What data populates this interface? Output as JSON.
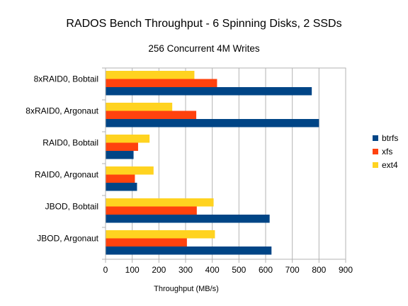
{
  "chart_data": {
    "type": "bar",
    "orientation": "horizontal",
    "title": "RADOS Bench Throughput - 6 Spinning Disks, 2 SSDs",
    "subtitle": "256 Concurrent 4M Writes",
    "xlabel": "Throughput (MB/s)",
    "ylabel": "",
    "xlim": [
      0,
      900
    ],
    "xticks": [
      0,
      100,
      200,
      300,
      400,
      500,
      600,
      700,
      800,
      900
    ],
    "grid": true,
    "legend_position": "right",
    "categories": [
      "8xRAID0, Bobtail",
      "8xRAID0, Argonaut",
      "RAID0, Bobtail",
      "RAID0, Argonaut",
      "JBOD, Bobtail",
      "JBOD, Argonaut"
    ],
    "series": [
      {
        "name": "btrfs",
        "color": "#004586",
        "values": [
          773,
          800,
          105,
          118,
          615,
          622
        ]
      },
      {
        "name": "xfs",
        "color": "#ff420e",
        "values": [
          418,
          340,
          122,
          110,
          342,
          305
        ]
      },
      {
        "name": "ext4",
        "color": "#ffd320",
        "values": [
          333,
          250,
          165,
          180,
          405,
          410
        ]
      }
    ]
  }
}
